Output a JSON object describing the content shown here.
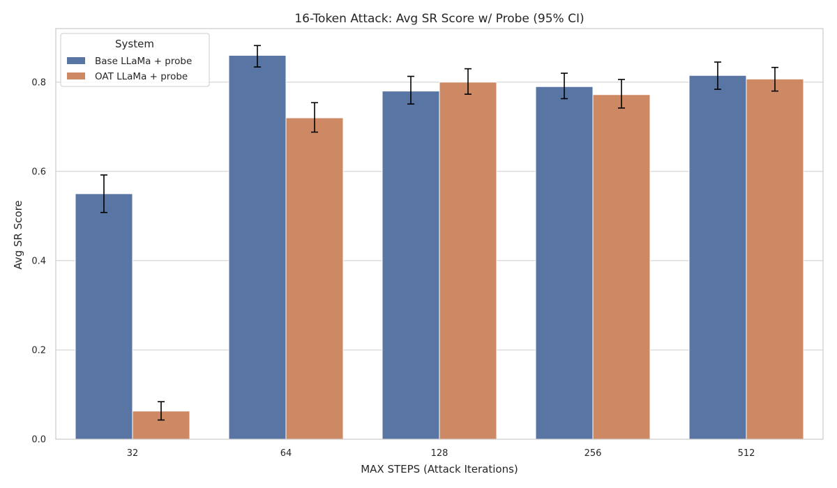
{
  "chart_data": {
    "type": "bar",
    "title": "16-Token Attack: Avg SR Score w/ Probe (95% CI)",
    "xlabel": "MAX STEPS (Attack Iterations)",
    "ylabel": "Avg SR Score",
    "categories": [
      "32",
      "64",
      "128",
      "256",
      "512"
    ],
    "ylim": [
      0,
      0.92
    ],
    "yticks": [
      0.0,
      0.2,
      0.4,
      0.6,
      0.8
    ],
    "ytick_labels": [
      "0.0",
      "0.2",
      "0.4",
      "0.6",
      "0.8"
    ],
    "grid": "horizontal",
    "legend": {
      "title": "System",
      "placement": "top-left"
    },
    "series": [
      {
        "name": "Base LLaMa + probe",
        "color": "#5875a4",
        "values": [
          0.55,
          0.86,
          0.78,
          0.79,
          0.815
        ],
        "ci_low": [
          0.508,
          0.834,
          0.751,
          0.763,
          0.784
        ],
        "ci_high": [
          0.592,
          0.882,
          0.813,
          0.82,
          0.845
        ]
      },
      {
        "name": "OAT LLaMa + probe",
        "color": "#cc8963",
        "values": [
          0.063,
          0.72,
          0.8,
          0.772,
          0.807
        ],
        "ci_low": [
          0.043,
          0.688,
          0.773,
          0.742,
          0.78
        ],
        "ci_high": [
          0.084,
          0.754,
          0.83,
          0.806,
          0.833
        ]
      }
    ]
  }
}
